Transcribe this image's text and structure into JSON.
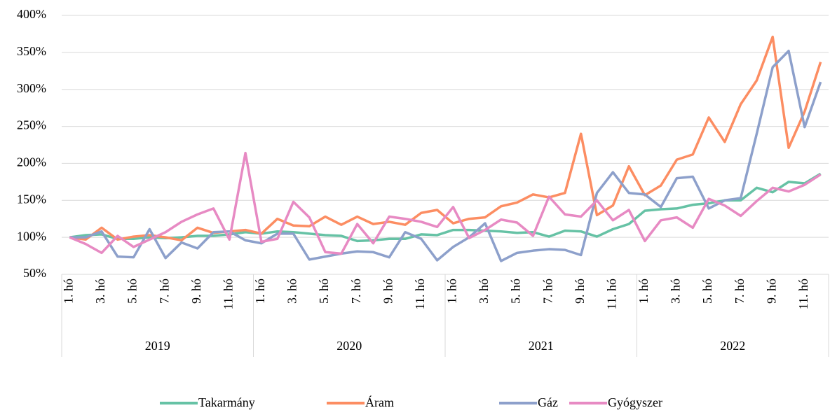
{
  "chart_data": {
    "type": "line",
    "categories": [
      "1. hó",
      null,
      "3. hó",
      null,
      "5. hó",
      null,
      "7. hó",
      null,
      "9. hó",
      null,
      "11. hó",
      null,
      "1. hó",
      null,
      "3. hó",
      null,
      "5. hó",
      null,
      "7. hó",
      null,
      "9. hó",
      null,
      "11. hó",
      null,
      "1. hó",
      null,
      "3. hó",
      null,
      "5. hó",
      null,
      "7. hó",
      null,
      "9. hó",
      null,
      "11. hó",
      null,
      "1. hó",
      null,
      "3. hó",
      null,
      "5. hó",
      null,
      "7. hó",
      null,
      "9. hó",
      null,
      "11. hó",
      null
    ],
    "years": [
      "2019",
      "2020",
      "2021",
      "2022"
    ],
    "ylim": [
      50,
      400
    ],
    "yticks": [
      {
        "value": 50,
        "label": "50%"
      },
      {
        "value": 100,
        "label": "100%"
      },
      {
        "value": 150,
        "label": "150%"
      },
      {
        "value": 200,
        "label": "200%"
      },
      {
        "value": 250,
        "label": "250%"
      },
      {
        "value": 300,
        "label": "300%"
      },
      {
        "value": 350,
        "label": "350%"
      },
      {
        "value": 400,
        "label": "400%"
      }
    ],
    "grid": true,
    "legend": "bottom",
    "series": [
      {
        "name": "Takarmány",
        "color": "#66c2a5",
        "values": [
          100,
          103,
          104,
          98,
          98,
          100,
          99,
          100,
          102,
          102,
          104,
          107,
          105,
          108,
          107,
          105,
          103,
          102,
          95,
          96,
          98,
          98,
          104,
          103,
          110,
          110,
          109,
          108,
          106,
          107,
          101,
          109,
          108,
          101,
          111,
          118,
          136,
          138,
          139,
          144,
          146,
          150,
          150,
          167,
          161,
          175,
          173,
          186
        ]
      },
      {
        "name": "Áram",
        "color": "#fc8d62",
        "values": [
          100,
          97,
          113,
          97,
          101,
          103,
          100,
          96,
          113,
          106,
          108,
          110,
          105,
          125,
          116,
          115,
          128,
          117,
          128,
          118,
          121,
          117,
          133,
          137,
          119,
          125,
          127,
          142,
          147,
          158,
          154,
          160,
          240,
          130,
          143,
          196,
          157,
          170,
          205,
          212,
          262,
          229,
          280,
          312,
          371,
          221,
          270,
          337
        ]
      },
      {
        "name": "Gáz",
        "color": "#8da0cb",
        "values": [
          100,
          100,
          108,
          74,
          73,
          111,
          72,
          93,
          85,
          107,
          108,
          96,
          92,
          105,
          105,
          70,
          74,
          78,
          81,
          80,
          73,
          107,
          98,
          69,
          87,
          100,
          119,
          68,
          79,
          82,
          84,
          83,
          76,
          160,
          188,
          160,
          158,
          141,
          180,
          182,
          139,
          150,
          153,
          240,
          330,
          352,
          249,
          310
        ]
      },
      {
        "name": "Gyógyszer",
        "color": "#e78ac3",
        "values": [
          100,
          91,
          79,
          102,
          87,
          97,
          107,
          121,
          131,
          139,
          97,
          214,
          94,
          98,
          148,
          127,
          80,
          78,
          118,
          92,
          128,
          125,
          121,
          114,
          141,
          99,
          110,
          124,
          120,
          102,
          155,
          131,
          128,
          150,
          123,
          137,
          95,
          123,
          127,
          113,
          152,
          143,
          129,
          149,
          167,
          162,
          171,
          185
        ]
      }
    ]
  }
}
